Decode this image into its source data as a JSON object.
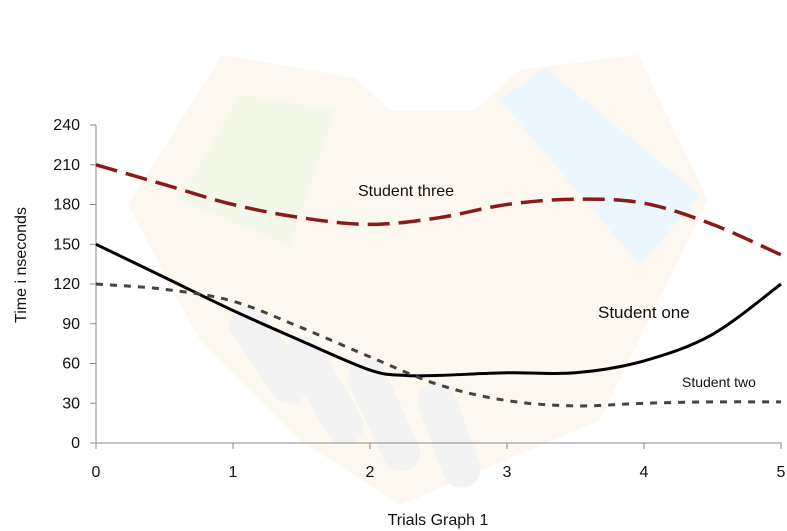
{
  "chart_data": {
    "type": "line",
    "xlabel": "Trials Graph 1",
    "ylabel": "Time i nseconds",
    "xlim": [
      0,
      5
    ],
    "ylim": [
      0,
      240
    ],
    "x_ticks": [
      "0",
      "1",
      "2",
      "3",
      "4",
      "5"
    ],
    "y_ticks": [
      "0",
      "30",
      "60",
      "90",
      "120",
      "150",
      "180",
      "210",
      "240"
    ],
    "grid": false,
    "series": [
      {
        "name": "Student one",
        "color": "#000000",
        "style": "solid",
        "x": [
          0,
          0.5,
          1,
          1.5,
          2,
          2.25,
          2.5,
          3,
          3.5,
          4,
          4.5,
          5
        ],
        "y": [
          150,
          125,
          100,
          77,
          55,
          51,
          51,
          53,
          53,
          62,
          82,
          120
        ]
      },
      {
        "name": "Student two",
        "color": "#444444",
        "style": "short-dash",
        "x": [
          0,
          0.5,
          1,
          1.5,
          2,
          2.5,
          3,
          3.5,
          4,
          4.5,
          5
        ],
        "y": [
          120,
          116,
          107,
          87,
          65,
          44,
          32,
          28,
          30,
          31,
          31
        ]
      },
      {
        "name": "Student three",
        "color": "#8b1a1a",
        "style": "long-dash",
        "x": [
          0,
          0.5,
          1,
          1.5,
          2,
          2.5,
          3,
          3.5,
          4,
          4.5,
          5
        ],
        "y": [
          210,
          195,
          180,
          170,
          165,
          170,
          180,
          184,
          181,
          165,
          142
        ]
      }
    ]
  }
}
